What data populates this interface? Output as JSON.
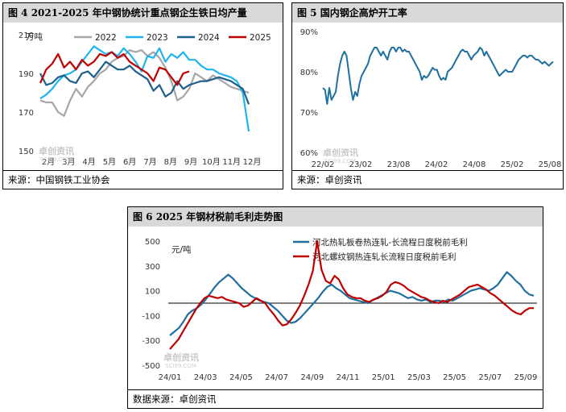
{
  "panels": {
    "p4": {
      "title": "图 4 2021-2025 年中钢协统计重点钢企生铁日均产量",
      "source": "来源：中国钢铁工业协会"
    },
    "p5": {
      "title": "图 5 国内钢企高炉开工率",
      "source": "来源：卓创资讯"
    },
    "p6": {
      "title": "图 6 2025 年钢材税前毛利走势图",
      "source": "数据来源：卓创资讯"
    }
  },
  "watermark": {
    "text": "卓创资讯",
    "sub": "SCI99.COM"
  },
  "chart_data": [
    {
      "id": "chart4",
      "type": "line",
      "title": "图 4 2021-2025 年中钢协统计重点钢企生铁日均产量",
      "unit_label": "万吨",
      "ylim": [
        150,
        210
      ],
      "yticks": [
        150,
        170,
        190,
        210
      ],
      "xticks": [
        "2月",
        "3月",
        "4月",
        "5月",
        "6月",
        "7月",
        "8月",
        "9月",
        "10月",
        "11月",
        "12月"
      ],
      "x_count": 36,
      "grid": false,
      "legend": "top",
      "series": [
        {
          "name": "2022",
          "color": "#a6a6a6",
          "values": [
            176,
            175,
            175,
            170,
            168,
            176,
            182,
            178,
            183,
            186,
            190,
            192,
            196,
            198,
            199,
            202,
            201,
            202,
            199,
            201,
            198,
            193,
            186,
            176,
            178,
            182,
            190,
            188,
            186,
            189,
            187,
            185,
            183,
            182,
            181,
            180
          ]
        },
        {
          "name": "2023",
          "color": "#1fb4ee",
          "values": [
            177,
            179,
            182,
            186,
            189,
            190,
            192,
            196,
            200,
            204,
            202,
            200,
            201,
            199,
            203,
            200,
            196,
            191,
            199,
            198,
            203,
            196,
            200,
            198,
            201,
            197,
            197,
            194,
            192,
            192,
            190,
            189,
            188,
            186,
            180,
            160
          ]
        },
        {
          "name": "2024",
          "color": "#1f5f8b",
          "values": [
            190,
            184,
            185,
            188,
            189,
            186,
            185,
            190,
            191,
            188,
            192,
            196,
            194,
            192,
            192,
            194,
            191,
            189,
            187,
            181,
            184,
            178,
            180,
            186,
            182,
            184,
            185,
            186,
            186,
            187,
            188,
            187,
            186,
            184,
            182,
            174
          ]
        },
        {
          "name": "2025",
          "color": "#c00000",
          "values": [
            185,
            192,
            195,
            200,
            193,
            196,
            192,
            197,
            194,
            196,
            200,
            199,
            201,
            198,
            200,
            196,
            194,
            192,
            190,
            186,
            193,
            192,
            188,
            184,
            190,
            191
          ]
        }
      ]
    },
    {
      "id": "chart5",
      "type": "line",
      "title": "图 5 国内钢企高炉开工率",
      "ylim": [
        60,
        90
      ],
      "yticks": [
        "60%",
        "70%",
        "80%",
        "90%"
      ],
      "ytick_values": [
        60,
        70,
        80,
        90
      ],
      "xticks": [
        "22/02",
        "23/02",
        "23/08",
        "24/02",
        "24/08",
        "25/02",
        "25/08"
      ],
      "grid": false,
      "series": [
        {
          "name": "",
          "color": "#1f6fa0",
          "values": [
            76,
            75.5,
            72,
            76,
            73,
            74,
            75,
            79,
            82,
            84,
            85,
            84,
            80,
            76,
            73,
            75,
            74,
            77,
            79,
            80,
            81,
            82,
            84,
            85,
            86,
            86,
            85,
            84,
            85,
            84,
            83,
            85,
            86,
            86,
            85,
            86,
            86,
            85,
            85.5,
            85,
            85,
            84,
            83,
            82,
            81,
            80,
            78,
            79,
            78.5,
            79,
            80,
            81,
            80.5,
            80.5,
            79,
            78,
            78.5,
            78,
            80,
            80.5,
            81,
            82,
            83,
            84,
            85,
            85.5,
            85,
            85,
            84,
            83,
            84,
            84.5,
            85,
            86,
            85.5,
            84,
            85,
            84,
            83,
            82,
            81,
            80,
            79,
            79.5,
            80,
            80.5,
            80,
            80,
            80,
            81,
            82,
            83,
            83.5,
            84,
            84,
            83.5,
            84,
            84,
            83.5,
            83,
            83,
            82.5,
            82,
            82.5,
            82,
            81.5,
            82,
            82.5
          ]
        }
      ]
    },
    {
      "id": "chart6",
      "type": "line",
      "title": "图 6 2025 年钢材税前毛利走势图",
      "unit_label": "元/吨",
      "ylim": [
        -500,
        500
      ],
      "yticks": [
        -500,
        -300,
        -100,
        100,
        300,
        500
      ],
      "xticks": [
        "24/01",
        "24/03",
        "24/05",
        "24/07",
        "24/09",
        "24/11",
        "25/01",
        "25/03",
        "25/05",
        "25/07",
        "25/09"
      ],
      "grid": false,
      "zero_line": true,
      "legend": "top",
      "series": [
        {
          "name": "河北热轧板卷热连轧-长流程日度税前毛利",
          "color": "#1f6fa0",
          "values": [
            -260,
            -230,
            -200,
            -150,
            -90,
            -60,
            -40,
            -10,
            30,
            80,
            130,
            170,
            200,
            230,
            200,
            160,
            120,
            90,
            60,
            40,
            20,
            10,
            0,
            -30,
            -60,
            -100,
            -140,
            -160,
            -150,
            -120,
            -80,
            -40,
            0,
            40,
            90,
            130,
            150,
            120,
            100,
            70,
            40,
            30,
            20,
            10,
            0,
            20,
            40,
            60,
            80,
            100,
            90,
            80,
            60,
            40,
            50,
            30,
            20,
            30,
            10,
            20,
            20,
            10,
            30,
            20,
            40,
            60,
            80,
            100,
            110,
            120,
            110,
            100,
            120,
            150,
            200,
            250,
            220,
            180,
            150,
            100,
            70,
            60
          ]
        },
        {
          "name": "河北螺纹钢热连轧长流程日度税前毛利",
          "color": "#c00000",
          "values": [
            -370,
            -330,
            -290,
            -230,
            -170,
            -110,
            -50,
            0,
            40,
            60,
            50,
            40,
            50,
            30,
            20,
            10,
            0,
            -30,
            -20,
            10,
            40,
            20,
            0,
            -50,
            -90,
            -140,
            -180,
            -170,
            -130,
            -80,
            -20,
            60,
            150,
            260,
            500,
            270,
            180,
            160,
            220,
            190,
            120,
            70,
            50,
            40,
            40,
            20,
            10,
            30,
            40,
            60,
            90,
            150,
            170,
            160,
            140,
            110,
            90,
            70,
            50,
            40,
            20,
            10,
            0,
            20,
            10,
            30,
            50,
            70,
            100,
            130,
            140,
            150,
            130,
            110,
            80,
            60,
            30,
            0,
            -30,
            -60,
            -80,
            -90,
            -60,
            -40,
            -40
          ]
        }
      ]
    }
  ]
}
